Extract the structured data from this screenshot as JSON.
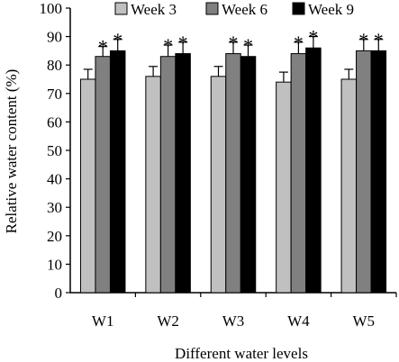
{
  "chart_data": {
    "type": "bar",
    "categories": [
      "W1",
      "W2",
      "W3",
      "W4",
      "W5"
    ],
    "series": [
      {
        "name": "Week 3",
        "color": "#c0c0c0",
        "values": [
          75,
          76,
          76,
          74,
          75
        ],
        "errors": [
          3.5,
          3.5,
          3.5,
          3.5,
          3.5
        ],
        "significant": [
          false,
          false,
          false,
          false,
          false
        ]
      },
      {
        "name": "Week 6",
        "color": "#808080",
        "values": [
          83,
          83,
          84,
          84,
          85
        ],
        "errors": [
          3.5,
          4,
          4,
          4,
          4
        ],
        "significant": [
          true,
          true,
          true,
          true,
          true
        ]
      },
      {
        "name": "Week 9",
        "color": "#000000",
        "values": [
          85,
          84,
          83,
          86,
          85
        ],
        "errors": [
          4,
          4,
          4,
          4,
          4
        ],
        "significant": [
          true,
          true,
          true,
          true,
          true
        ]
      }
    ],
    "ylim": [
      0,
      100
    ],
    "yticks": [
      0,
      10,
      20,
      30,
      40,
      50,
      60,
      70,
      80,
      90,
      100
    ],
    "xlabel": "Different water levels",
    "ylabel": "Relative water content (%)",
    "significance_marker": "*",
    "legend_position": "top"
  }
}
